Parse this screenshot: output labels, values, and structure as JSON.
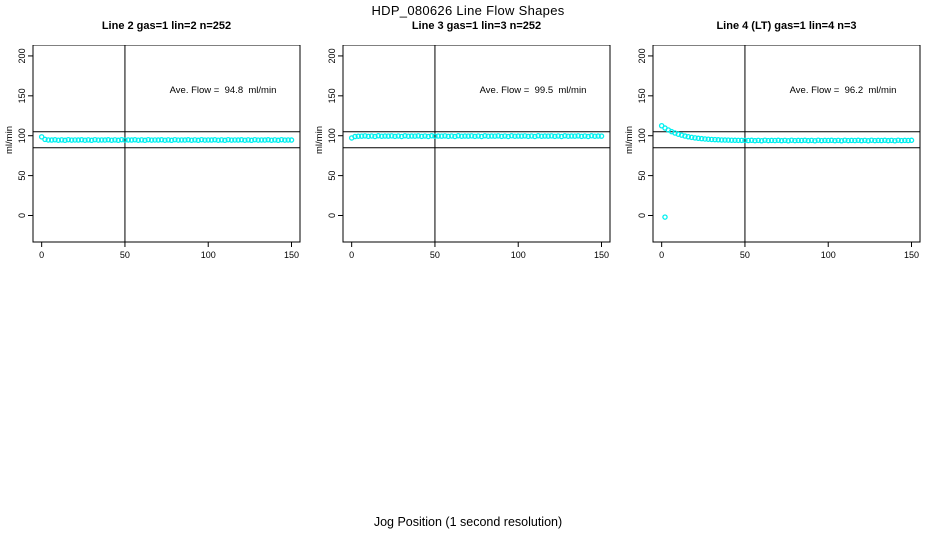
{
  "figure": {
    "title": "HDP_080626  Line Flow Shapes",
    "xlabel": "Jog Position (1 second resolution)",
    "background": "#ffffff",
    "point_color": "#00f0f0",
    "axis_color": "#000000"
  },
  "chart_data": [
    {
      "type": "scatter",
      "title": "Line 2 gas=1 lin=2 n=252",
      "annotation": "Ave. Flow =  94.8  ml/min",
      "ylabel": "ml/min",
      "ave_flow_ml_min": 94.8,
      "x_ticks": [
        0,
        50,
        100,
        150
      ],
      "y_ticks": [
        0,
        50,
        100,
        150,
        200
      ],
      "xlim": [
        -5.2,
        155.1
      ],
      "ylim": [
        -33.2,
        213.7
      ],
      "ref_h": [
        105,
        85
      ],
      "ref_v": [
        50
      ],
      "grid": false,
      "x": [
        0,
        2,
        4,
        6,
        8,
        10,
        12,
        14,
        16,
        18,
        20,
        22,
        24,
        26,
        28,
        30,
        32,
        34,
        36,
        38,
        40,
        42,
        44,
        46,
        48,
        50,
        52,
        54,
        56,
        58,
        60,
        62,
        64,
        66,
        68,
        70,
        72,
        74,
        76,
        78,
        80,
        82,
        84,
        86,
        88,
        90,
        92,
        94,
        96,
        98,
        100,
        102,
        104,
        106,
        108,
        110,
        112,
        114,
        116,
        118,
        120,
        122,
        124,
        126,
        128,
        130,
        132,
        134,
        136,
        138,
        140,
        142,
        144,
        146,
        148,
        150
      ],
      "y": [
        98.6,
        95.4,
        94.7,
        94.6,
        94.9,
        94.4,
        94.8,
        94.3,
        95.0,
        94.5,
        94.7,
        94.6,
        94.9,
        94.4,
        94.8,
        94.3,
        95.0,
        94.5,
        94.7,
        94.6,
        94.9,
        94.4,
        94.8,
        94.3,
        95.0,
        94.5,
        94.7,
        94.6,
        94.9,
        94.4,
        94.8,
        94.3,
        95.0,
        94.5,
        94.7,
        94.6,
        94.9,
        94.4,
        94.8,
        94.3,
        95.0,
        94.5,
        94.7,
        94.6,
        94.9,
        94.4,
        94.8,
        94.3,
        95.0,
        94.5,
        94.7,
        94.6,
        94.9,
        94.4,
        94.8,
        94.3,
        95.0,
        94.5,
        94.7,
        94.6,
        94.9,
        94.4,
        94.8,
        94.3,
        95.0,
        94.5,
        94.7,
        94.6,
        94.9,
        94.4,
        94.8,
        94.3,
        95.0,
        94.5,
        94.7,
        94.6
      ],
      "extra_points": []
    },
    {
      "type": "scatter",
      "title": "Line 3 gas=1 lin=3 n=252",
      "annotation": "Ave. Flow =  99.5  ml/min",
      "ylabel": "ml/min",
      "ave_flow_ml_min": 99.5,
      "x_ticks": [
        0,
        50,
        100,
        150
      ],
      "y_ticks": [
        0,
        50,
        100,
        150,
        200
      ],
      "xlim": [
        -5.2,
        155.1
      ],
      "ylim": [
        -33.2,
        213.7
      ],
      "ref_h": [
        105,
        85
      ],
      "ref_v": [
        50
      ],
      "grid": false,
      "x": [
        0,
        2,
        4,
        6,
        8,
        10,
        12,
        14,
        16,
        18,
        20,
        22,
        24,
        26,
        28,
        30,
        32,
        34,
        36,
        38,
        40,
        42,
        44,
        46,
        48,
        50,
        52,
        54,
        56,
        58,
        60,
        62,
        64,
        66,
        68,
        70,
        72,
        74,
        76,
        78,
        80,
        82,
        84,
        86,
        88,
        90,
        92,
        94,
        96,
        98,
        100,
        102,
        104,
        106,
        108,
        110,
        112,
        114,
        116,
        118,
        120,
        122,
        124,
        126,
        128,
        130,
        132,
        134,
        136,
        138,
        140,
        142,
        144,
        146,
        148,
        150
      ],
      "y": [
        97.2,
        99.0,
        99.4,
        99.5,
        99.8,
        99.2,
        99.7,
        99.1,
        99.9,
        99.4,
        99.6,
        99.5,
        99.8,
        99.2,
        99.7,
        99.1,
        99.9,
        99.4,
        99.6,
        99.5,
        99.8,
        99.2,
        99.7,
        99.1,
        99.9,
        99.4,
        99.6,
        99.5,
        99.8,
        99.2,
        99.7,
        99.1,
        99.9,
        99.4,
        99.6,
        99.5,
        99.8,
        99.2,
        99.7,
        99.1,
        99.9,
        99.4,
        99.6,
        99.5,
        99.8,
        99.2,
        99.7,
        99.1,
        99.9,
        99.4,
        99.6,
        99.5,
        99.8,
        99.2,
        99.7,
        99.1,
        99.9,
        99.4,
        99.6,
        99.5,
        99.8,
        99.2,
        99.7,
        99.1,
        99.9,
        99.4,
        99.6,
        99.5,
        99.8,
        99.2,
        99.7,
        99.1,
        99.9,
        99.4,
        99.6,
        99.5
      ],
      "extra_points": []
    },
    {
      "type": "scatter",
      "title": "Line 4 (LT) gas=1 lin=4 n=3",
      "annotation": "Ave. Flow =  96.2  ml/min",
      "ylabel": "ml/min",
      "ave_flow_ml_min": 96.2,
      "x_ticks": [
        0,
        50,
        100,
        150
      ],
      "y_ticks": [
        0,
        50,
        100,
        150,
        200
      ],
      "xlim": [
        -5.2,
        155.1
      ],
      "ylim": [
        -33.2,
        213.7
      ],
      "ref_h": [
        105,
        85
      ],
      "ref_v": [
        50
      ],
      "grid": false,
      "x": [
        0,
        2,
        4,
        6,
        8,
        10,
        12,
        14,
        16,
        18,
        20,
        22,
        24,
        26,
        28,
        30,
        32,
        34,
        36,
        38,
        40,
        42,
        44,
        46,
        48,
        50,
        52,
        54,
        56,
        58,
        60,
        62,
        64,
        66,
        68,
        70,
        72,
        74,
        76,
        78,
        80,
        82,
        84,
        86,
        88,
        90,
        92,
        94,
        96,
        98,
        100,
        102,
        104,
        106,
        108,
        110,
        112,
        114,
        116,
        118,
        120,
        122,
        124,
        126,
        128,
        130,
        132,
        134,
        136,
        138,
        140,
        142,
        144,
        146,
        148,
        150
      ],
      "y": [
        112.5,
        109.6,
        107.2,
        105.1,
        103.4,
        101.9,
        100.7,
        99.6,
        98.7,
        98.0,
        97.3,
        96.8,
        96.3,
        95.9,
        95.6,
        95.3,
        95.1,
        94.9,
        94.7,
        94.6,
        94.5,
        94.4,
        94.3,
        94.2,
        94.2,
        94.1,
        94.0,
        94.3,
        93.8,
        94.2,
        93.7,
        94.4,
        93.9,
        94.1,
        94.0,
        94.3,
        93.8,
        94.2,
        93.7,
        94.4,
        93.9,
        94.1,
        94.0,
        94.3,
        93.8,
        94.2,
        93.7,
        94.4,
        93.9,
        94.1,
        94.0,
        94.3,
        93.8,
        94.2,
        93.7,
        94.4,
        93.9,
        94.1,
        94.0,
        94.3,
        93.8,
        94.2,
        93.7,
        94.4,
        93.9,
        94.1,
        94.0,
        94.3,
        93.8,
        94.2,
        93.7,
        94.4,
        93.9,
        94.1,
        94.0,
        94.3
      ],
      "extra_points": [
        [
          2,
          -2
        ]
      ]
    }
  ]
}
